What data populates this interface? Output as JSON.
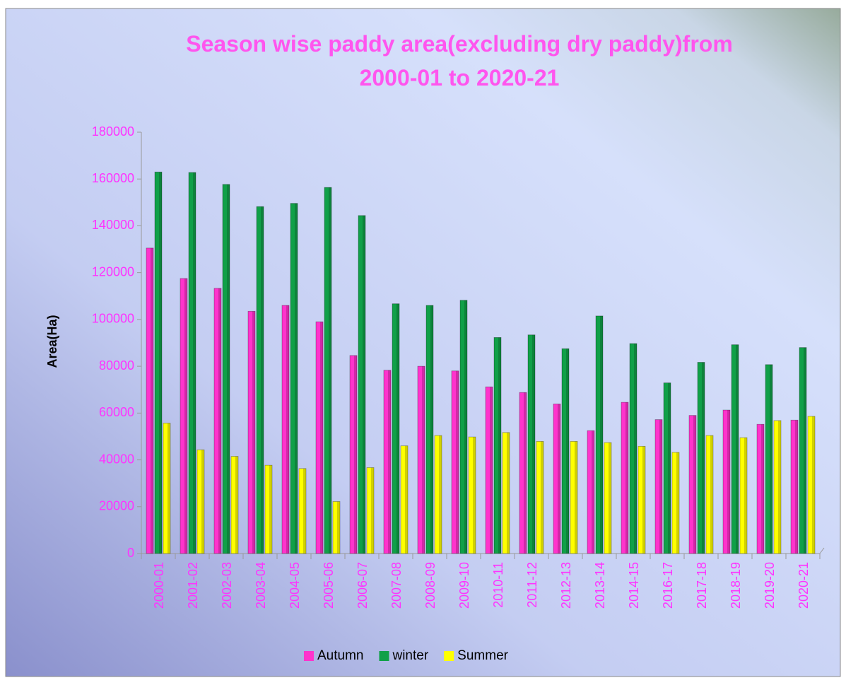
{
  "chart_data": {
    "type": "bar",
    "title": "Season wise paddy area(excluding dry paddy)from 2000-01 to 2020-21",
    "y_label": "Area(Ha)",
    "categories": [
      "2000-01",
      "2001-02",
      "2002-03",
      "2003-04",
      "2004-05",
      "2005-06",
      "2006-07",
      "2007-08",
      "2008-09",
      "2009-10",
      "2010-11",
      "2011-12",
      "2012-13",
      "2013-14",
      "2014-15",
      "2016-17",
      "2017-18",
      "2018-19",
      "2019-20",
      "2020-21"
    ],
    "series": [
      {
        "name": "Autumn",
        "color": "#ff33cc",
        "values": [
          130500,
          117500,
          113300,
          103500,
          106000,
          99000,
          84600,
          78300,
          80000,
          78000,
          71200,
          68800,
          63900,
          52500,
          64600,
          57200,
          59000,
          61300,
          55200,
          57000
        ]
      },
      {
        "name": "winter",
        "color": "#10a048",
        "values": [
          163000,
          162800,
          157700,
          148200,
          149600,
          156400,
          144400,
          106700,
          106000,
          108200,
          92300,
          93400,
          87500,
          101500,
          89700,
          72900,
          81700,
          89200,
          80700,
          88000
        ]
      },
      {
        "name": "Summer",
        "color": "#ffff00",
        "values": [
          55700,
          44300,
          41500,
          37700,
          36300,
          22200,
          36700,
          46000,
          50400,
          49800,
          51700,
          47900,
          47900,
          47400,
          45800,
          43200,
          50400,
          49500,
          56800,
          58600
        ]
      }
    ],
    "ylim": [
      0,
      180000
    ],
    "yticks": [
      0,
      20000,
      40000,
      60000,
      80000,
      100000,
      120000,
      140000,
      160000,
      180000
    ],
    "legend": "bottom"
  }
}
